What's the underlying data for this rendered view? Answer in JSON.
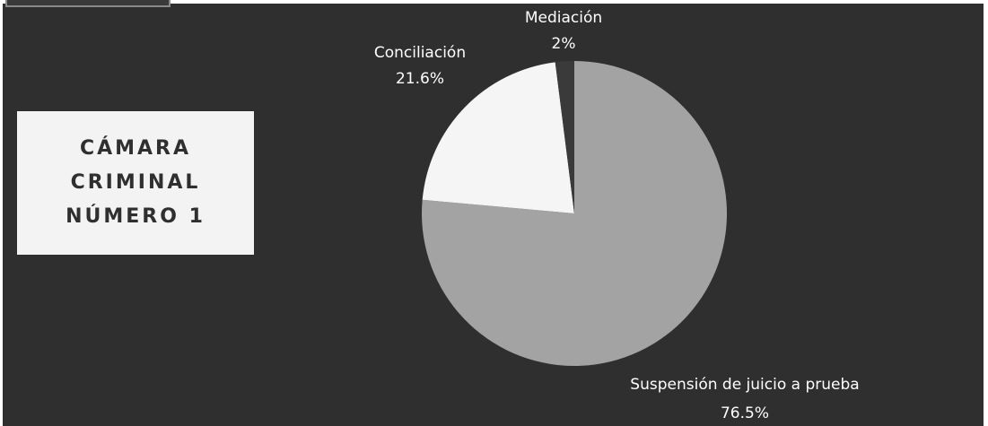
{
  "card": {
    "title": "CÁMARA\nCRIMINAL\nNÚMERO 1"
  },
  "colors": {
    "background": "#2f2f2f",
    "card": "#f3f3f3",
    "card_text": "#2f2f2f",
    "label_text": "#ffffff"
  },
  "chart_data": {
    "type": "pie",
    "title": "",
    "slices": [
      {
        "name": "Suspensión de juicio a prueba",
        "value": 76.5,
        "label": "76.5%",
        "color": "#a3a3a3"
      },
      {
        "name": "Conciliación",
        "value": 21.6,
        "label": "21.6%",
        "color": "#f5f5f5"
      },
      {
        "name": "Mediación",
        "value": 2,
        "label": "2%",
        "color": "#3a3a3a"
      }
    ],
    "start_angle": "12 o'clock, clockwise",
    "legend": "none (direct labels)"
  }
}
